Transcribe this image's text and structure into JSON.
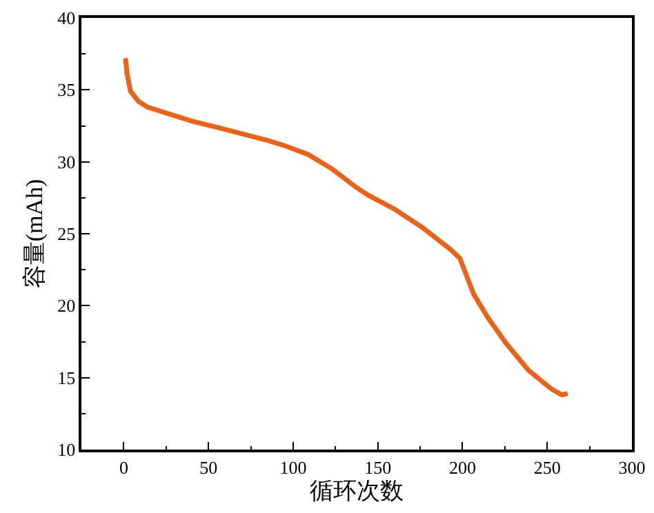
{
  "chart_data": {
    "type": "line",
    "xlabel": "循环次数",
    "ylabel": "容量(mAh)",
    "xlim": [
      -25,
      300
    ],
    "ylim": [
      10,
      40
    ],
    "xticks": [
      0,
      {
        "value": 25,
        "label": null
      },
      50,
      {
        "value": 75,
        "label": null
      },
      100,
      {
        "value": 125,
        "label": null
      },
      150,
      {
        "value": 175,
        "label": null
      },
      200,
      {
        "value": 225,
        "label": null
      },
      250,
      {
        "value": 275,
        "label": null
      },
      300
    ],
    "yticks": [
      10,
      {
        "value": 12.5,
        "label": null
      },
      15,
      {
        "value": 17.5,
        "label": null
      },
      20,
      {
        "value": 22.5,
        "label": null
      },
      25,
      {
        "value": 27.5,
        "label": null
      },
      30,
      {
        "value": 32.5,
        "label": null
      },
      35,
      {
        "value": 37.5,
        "label": null
      },
      40
    ],
    "marker": "none",
    "line_style": "solid",
    "series": [
      {
        "color": "#e8641b",
        "x": [
          1,
          2,
          4,
          8.7,
          14,
          27.6,
          41,
          55,
          68,
          84.6,
          95.5,
          109,
          123,
          137.5,
          144,
          160,
          176.7,
          193,
          198.4,
          206.6,
          214.8,
          225.6,
          239,
          252.6,
          258.7,
          262
        ],
        "values": [
          37.2,
          36.1,
          34.9,
          34.2,
          33.8,
          33.3,
          32.8,
          32.4,
          32.0,
          31.5,
          31.1,
          30.5,
          29.5,
          28.2,
          27.7,
          26.7,
          25.4,
          23.9,
          23.3,
          20.8,
          19.2,
          17.4,
          15.5,
          14.2,
          13.8,
          13.9
        ]
      }
    ]
  }
}
